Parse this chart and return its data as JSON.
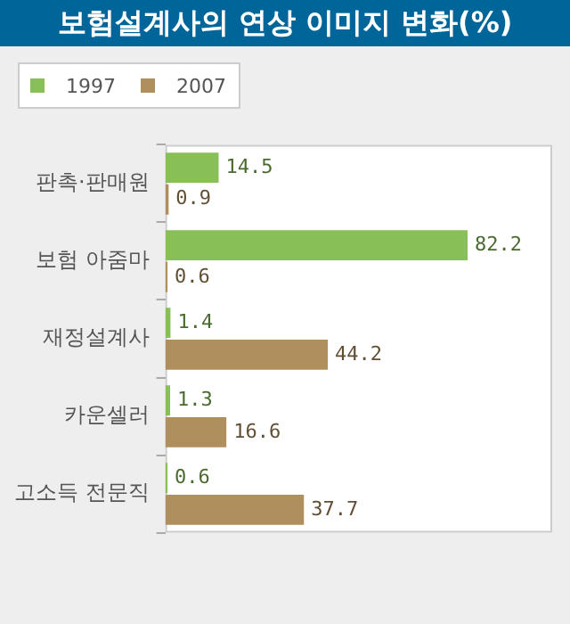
{
  "chart_data": {
    "type": "bar",
    "orientation": "horizontal",
    "title": "보험설계사의 연상 이미지 변화(%)",
    "categories": [
      "판촉·판매원",
      "보험 아줌마",
      "재정설계사",
      "카운셀러",
      "고소득 전문직"
    ],
    "series": [
      {
        "name": "1997",
        "color": "#88c057",
        "values": [
          14.5,
          82.2,
          1.4,
          1.3,
          0.6
        ]
      },
      {
        "name": "2007",
        "color": "#b08f5e",
        "values": [
          0.9,
          0.6,
          44.2,
          16.6,
          37.7
        ]
      }
    ],
    "data_labels": true,
    "legend": "top left"
  }
}
